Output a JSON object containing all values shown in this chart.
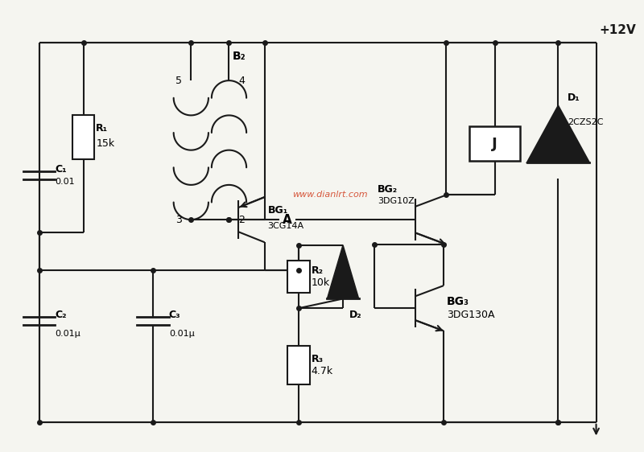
{
  "bg_color": "#f5f5f0",
  "line_color": "#1a1a1a",
  "lw": 1.5,
  "watermark": "www.dianlrt.com",
  "watermark_color": "#cc2200",
  "supply_label": "+12V",
  "R1_label": "R₁",
  "R1_val": "15k",
  "R2_label": "R₂",
  "R2_val": "10k",
  "R3_label": "R₃",
  "R3_val": "4.7k",
  "C1_label": "C₁",
  "C1_val": "0.01",
  "C2_label": "C₂",
  "C2_val": "0.01μ",
  "C3_label": "C₃",
  "C3_val": "0.01μ",
  "BG1_label": "BG₁",
  "BG1_type": "3CG14A",
  "BG2_label": "BG₂",
  "BG2_type": "3DG10Z",
  "BG3_label": "BG₃",
  "BG3_type": "3DG130A",
  "D1_label": "D₁",
  "D1_type": "2CZS2C",
  "D2_label": "D₂",
  "B2_label": "B₂",
  "J_label": "J",
  "A_label": "A",
  "pin5": "5",
  "pin4": "4",
  "pin3": "3",
  "pin2": "2"
}
